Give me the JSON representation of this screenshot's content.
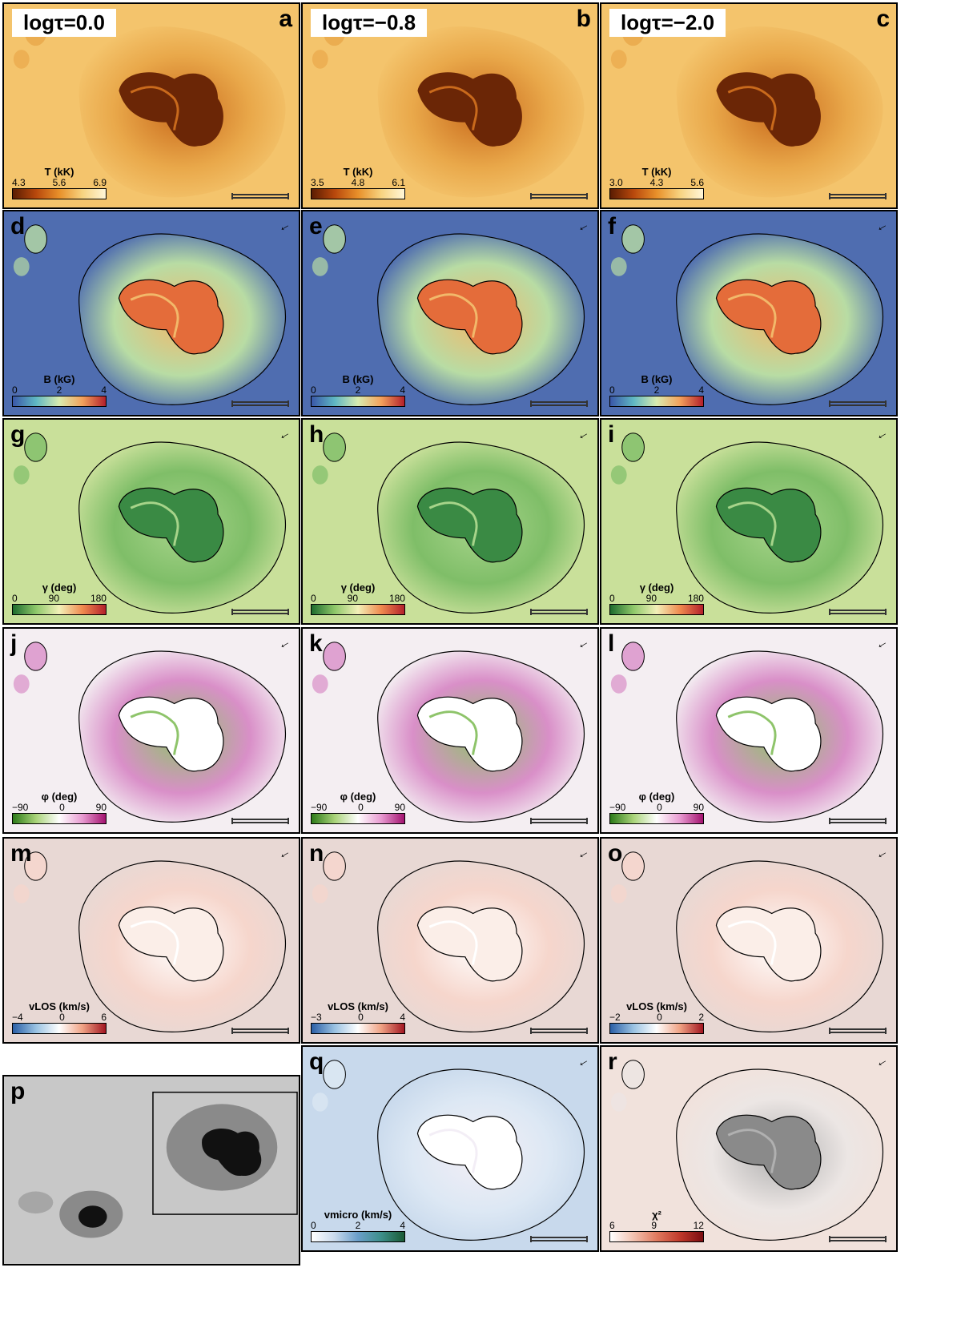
{
  "columns": [
    {
      "title": "logτ=0.0"
    },
    {
      "title": "logτ=−0.8"
    },
    {
      "title": "logτ=−2.0"
    }
  ],
  "panels": [
    {
      "id": "a",
      "letter": "a",
      "row": 0,
      "col": 0,
      "cmap": "temp",
      "label": "T (kK)",
      "ticks": [
        "4.3",
        "5.6",
        "6.9"
      ]
    },
    {
      "id": "b",
      "letter": "b",
      "row": 0,
      "col": 1,
      "cmap": "temp",
      "label": "T (kK)",
      "ticks": [
        "3.5",
        "4.8",
        "6.1"
      ]
    },
    {
      "id": "c",
      "letter": "c",
      "row": 0,
      "col": 2,
      "cmap": "temp",
      "label": "T (kK)",
      "ticks": [
        "3.0",
        "4.3",
        "5.6"
      ]
    },
    {
      "id": "d",
      "letter": "d",
      "row": 1,
      "col": 0,
      "cmap": "field",
      "label": "B (kG)",
      "ticks": [
        "0",
        "2",
        "4"
      ]
    },
    {
      "id": "e",
      "letter": "e",
      "row": 1,
      "col": 1,
      "cmap": "field",
      "label": "B (kG)",
      "ticks": [
        "0",
        "2",
        "4"
      ]
    },
    {
      "id": "f",
      "letter": "f",
      "row": 1,
      "col": 2,
      "cmap": "field",
      "label": "B (kG)",
      "ticks": [
        "0",
        "2",
        "4"
      ]
    },
    {
      "id": "g",
      "letter": "g",
      "row": 2,
      "col": 0,
      "cmap": "incl",
      "label": "γ (deg)",
      "ticks": [
        "0",
        "90",
        "180"
      ]
    },
    {
      "id": "h",
      "letter": "h",
      "row": 2,
      "col": 1,
      "cmap": "incl",
      "label": "γ (deg)",
      "ticks": [
        "0",
        "90",
        "180"
      ]
    },
    {
      "id": "i",
      "letter": "i",
      "row": 2,
      "col": 2,
      "cmap": "incl",
      "label": "γ (deg)",
      "ticks": [
        "0",
        "90",
        "180"
      ]
    },
    {
      "id": "j",
      "letter": "j",
      "row": 3,
      "col": 0,
      "cmap": "azim",
      "label": "φ (deg)",
      "ticks": [
        "−90",
        "0",
        "90"
      ]
    },
    {
      "id": "k",
      "letter": "k",
      "row": 3,
      "col": 1,
      "cmap": "azim",
      "label": "φ (deg)",
      "ticks": [
        "−90",
        "0",
        "90"
      ]
    },
    {
      "id": "l",
      "letter": "l",
      "row": 3,
      "col": 2,
      "cmap": "azim",
      "label": "φ (deg)",
      "ticks": [
        "−90",
        "0",
        "90"
      ]
    },
    {
      "id": "m",
      "letter": "m",
      "row": 4,
      "col": 0,
      "cmap": "vlos",
      "label": "vLOS (km/s)",
      "ticks": [
        "−4",
        "0",
        "6"
      ]
    },
    {
      "id": "n",
      "letter": "n",
      "row": 4,
      "col": 1,
      "cmap": "vlos",
      "label": "vLOS (km/s)",
      "ticks": [
        "−3",
        "0",
        "4"
      ]
    },
    {
      "id": "o",
      "letter": "o",
      "row": 4,
      "col": 2,
      "cmap": "vlos",
      "label": "vLOS (km/s)",
      "ticks": [
        "−2",
        "0",
        "2"
      ]
    },
    {
      "id": "q",
      "letter": "q",
      "row": 5,
      "col": 1,
      "cmap": "vmic",
      "label": "vmicro (km/s)",
      "ticks": [
        "0",
        "2",
        "4"
      ]
    },
    {
      "id": "r",
      "letter": "r",
      "row": 5,
      "col": 2,
      "cmap": "chi",
      "label": "χ²",
      "ticks": [
        "6",
        "9",
        "12"
      ]
    }
  ],
  "overview": {
    "letter": "p"
  },
  "colormaps": {
    "temp": [
      "#5a1c02",
      "#b8480c",
      "#e8902a",
      "#f7d380",
      "#fff6d8"
    ],
    "field": [
      "#3a57a8",
      "#5fb7c3",
      "#d9ecb0",
      "#f3a15c",
      "#b3202b"
    ],
    "incl": [
      "#1d6b2e",
      "#8fc86a",
      "#f2f0b8",
      "#f08a4f",
      "#b3202b"
    ],
    "azim": [
      "#2d7a19",
      "#a9d379",
      "#ffffff",
      "#e89ad1",
      "#a3126f"
    ],
    "vlos": [
      "#2b5fa6",
      "#9ac2e2",
      "#ffffff",
      "#f0a284",
      "#a21621"
    ],
    "vmic": [
      "#ffffff",
      "#c9d9ec",
      "#6a9ec9",
      "#3d8f8a",
      "#1a5a34"
    ],
    "chi": [
      "#ffffff",
      "#f2c2b0",
      "#e07a5f",
      "#c0392b",
      "#7a0c10"
    ]
  }
}
